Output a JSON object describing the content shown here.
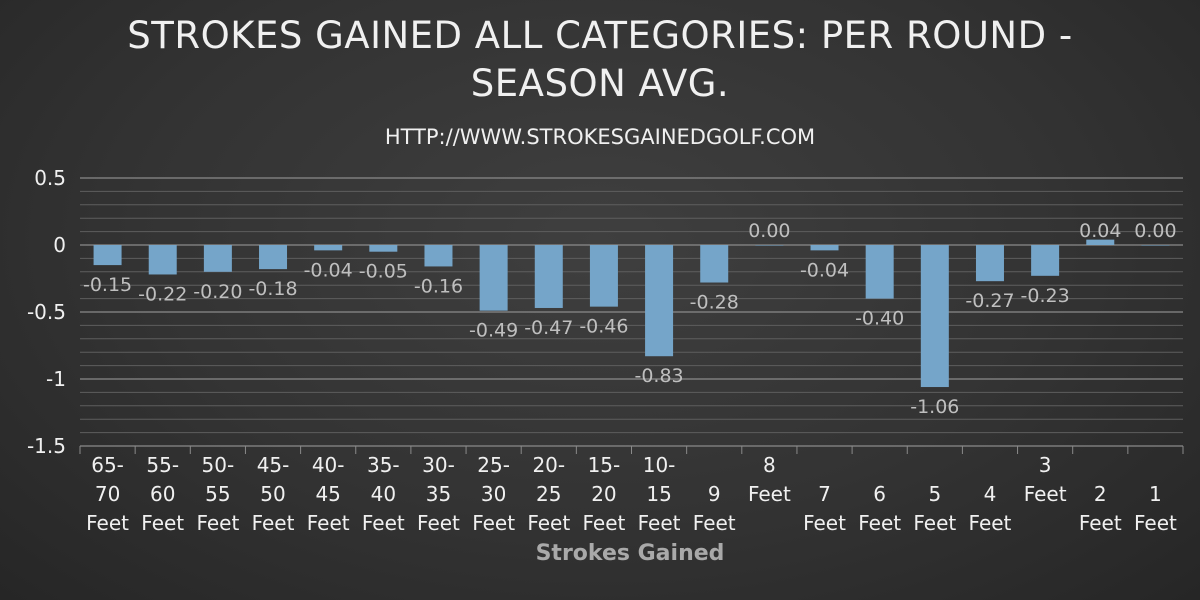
{
  "chart_data": {
    "type": "bar",
    "title_line1": "STROKES GAINED ALL CATEGORIES: PER ROUND -",
    "title_line2": "SEASON AVG.",
    "subtitle": "HTTP://WWW.STROKESGAINEDGOLF.COM",
    "xlabel": "Strokes Gained",
    "ylabel": "",
    "ylim": [
      -1.5,
      0.5
    ],
    "yticks": [
      "0.5",
      "0",
      "-0.5",
      "-1",
      "-1.5"
    ],
    "grid": true,
    "legend": "none",
    "bar_color": "#75a5c9",
    "categories": [
      [
        "65-",
        "70",
        "Feet"
      ],
      [
        "55-",
        "60",
        "Feet"
      ],
      [
        "50-",
        "55",
        "Feet"
      ],
      [
        "45-",
        "50",
        "Feet"
      ],
      [
        "40-",
        "45",
        "Feet"
      ],
      [
        "35-",
        "40",
        "Feet"
      ],
      [
        "30-",
        "35",
        "Feet"
      ],
      [
        "25-",
        "30",
        "Feet"
      ],
      [
        "20-",
        "25",
        "Feet"
      ],
      [
        "15-",
        "20",
        "Feet"
      ],
      [
        "10-",
        "15",
        "Feet"
      ],
      [
        "",
        "9",
        "Feet"
      ],
      [
        "8",
        "Feet",
        ""
      ],
      [
        "",
        "7",
        "Feet"
      ],
      [
        "",
        "6",
        "Feet"
      ],
      [
        "",
        "5",
        "Feet"
      ],
      [
        "",
        "4",
        "Feet"
      ],
      [
        "3",
        "Feet",
        ""
      ],
      [
        "",
        "2",
        "Feet"
      ],
      [
        "",
        "1",
        "Feet"
      ]
    ],
    "values": [
      -0.15,
      -0.22,
      -0.2,
      -0.18,
      -0.04,
      -0.05,
      -0.16,
      -0.49,
      -0.47,
      -0.46,
      -0.83,
      -0.28,
      0.0,
      -0.04,
      -0.4,
      -1.06,
      -0.27,
      -0.23,
      0.04,
      0.0
    ],
    "data_labels": [
      "-0.15",
      "-0.22",
      "-0.20",
      "-0.18",
      "-0.04",
      "-0.05",
      "-0.16",
      "-0.49",
      "-0.47",
      "-0.46",
      "-0.83",
      "-0.28",
      "0.00",
      "-0.04",
      "-0.40",
      "-1.06",
      "-0.27",
      "-0.23",
      "0.04",
      "0.00"
    ]
  }
}
